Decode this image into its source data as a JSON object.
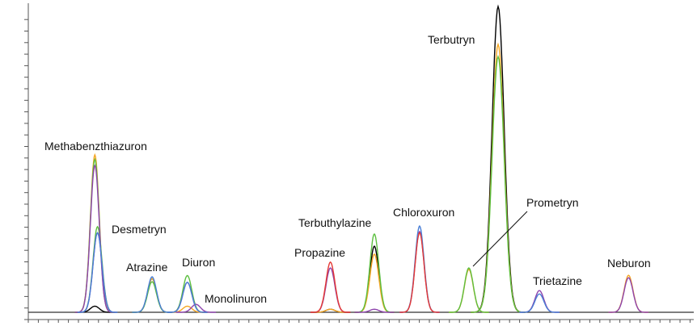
{
  "chart_data": {
    "type": "chromatogram",
    "xlim": [
      0,
      100
    ],
    "ylim": [
      0,
      100
    ],
    "x": [
      10.0,
      10.4,
      18.6,
      23.9,
      25.2,
      45.4,
      52.0,
      58.8,
      66.2,
      70.6,
      76.8,
      90.2
    ],
    "peak_labels": [
      "Methabenzthiazuron",
      "Desmetryn",
      "Atrazine",
      "Diuron",
      "Monolinuron",
      "Propazine",
      "Terbuthylazine",
      "Chloroxuron",
      "Prometryn",
      "Terbutryn",
      "Trietazine",
      "Neburon"
    ],
    "series": [
      {
        "color": "#000000",
        "values": [
          2,
          null,
          11,
          null,
          null,
          1,
          21.6,
          null,
          null,
          100,
          null,
          null
        ]
      },
      {
        "color": "#f5a623",
        "values": [
          51.5,
          null,
          11,
          2,
          null,
          1,
          19,
          null,
          14,
          87.6,
          null,
          12.1
        ]
      },
      {
        "color": "#5cbf3f",
        "values": [
          50,
          28,
          10,
          12,
          null,
          null,
          25.6,
          null,
          14.5,
          83.6,
          null,
          null
        ]
      },
      {
        "color": "#8e44ad",
        "values": [
          48,
          26,
          null,
          9.8,
          2.6,
          14.5,
          1,
          26.4,
          null,
          null,
          7.1,
          11.3
        ]
      },
      {
        "color": "#4a7fd6",
        "values": [
          null,
          26,
          11.6,
          9.8,
          null,
          null,
          null,
          28.2,
          null,
          null,
          6,
          null
        ]
      },
      {
        "color": "#e53935",
        "values": [
          null,
          null,
          null,
          null,
          null,
          16.4,
          null,
          26,
          null,
          null,
          null,
          null
        ]
      }
    ]
  }
}
